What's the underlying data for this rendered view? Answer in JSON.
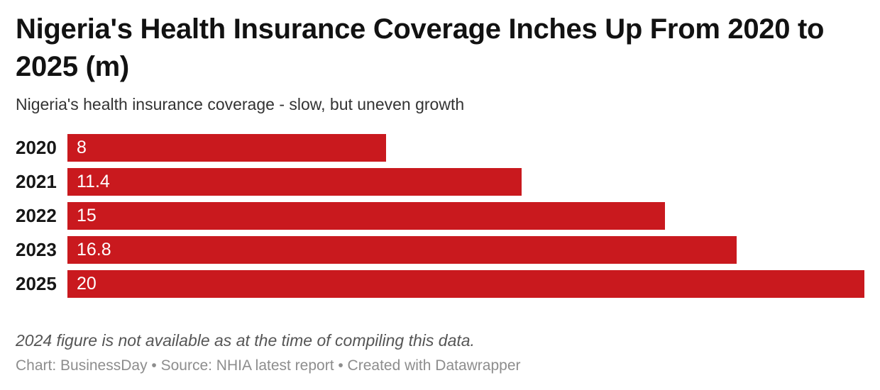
{
  "chart_data": {
    "type": "bar",
    "orientation": "horizontal",
    "title": "Nigeria's Health Insurance Coverage Inches Up From 2020 to 2025 (m)",
    "subtitle": "Nigeria's health insurance coverage - slow, but uneven growth",
    "categories": [
      "2020",
      "2021",
      "2022",
      "2023",
      "2025"
    ],
    "values": [
      8,
      11.4,
      15,
      16.8,
      20
    ],
    "value_labels": [
      "8",
      "11.4",
      "15",
      "16.8",
      "20"
    ],
    "xlim": [
      0,
      20
    ],
    "grid": false,
    "legend": "none",
    "value_label_position": "inside-start",
    "note": "2024 figure is not available as at the time of compiling this data.",
    "byline": "Chart: BusinessDay • Source: NHIA latest report • Created with Datawrapper"
  },
  "colors": {
    "bar": "#c9191e",
    "title": "#121212",
    "subtitle": "#333333",
    "category_label": "#161616",
    "value_label": "#ffffff",
    "note": "#555555",
    "byline": "#8d8d8d",
    "background": "#ffffff"
  }
}
